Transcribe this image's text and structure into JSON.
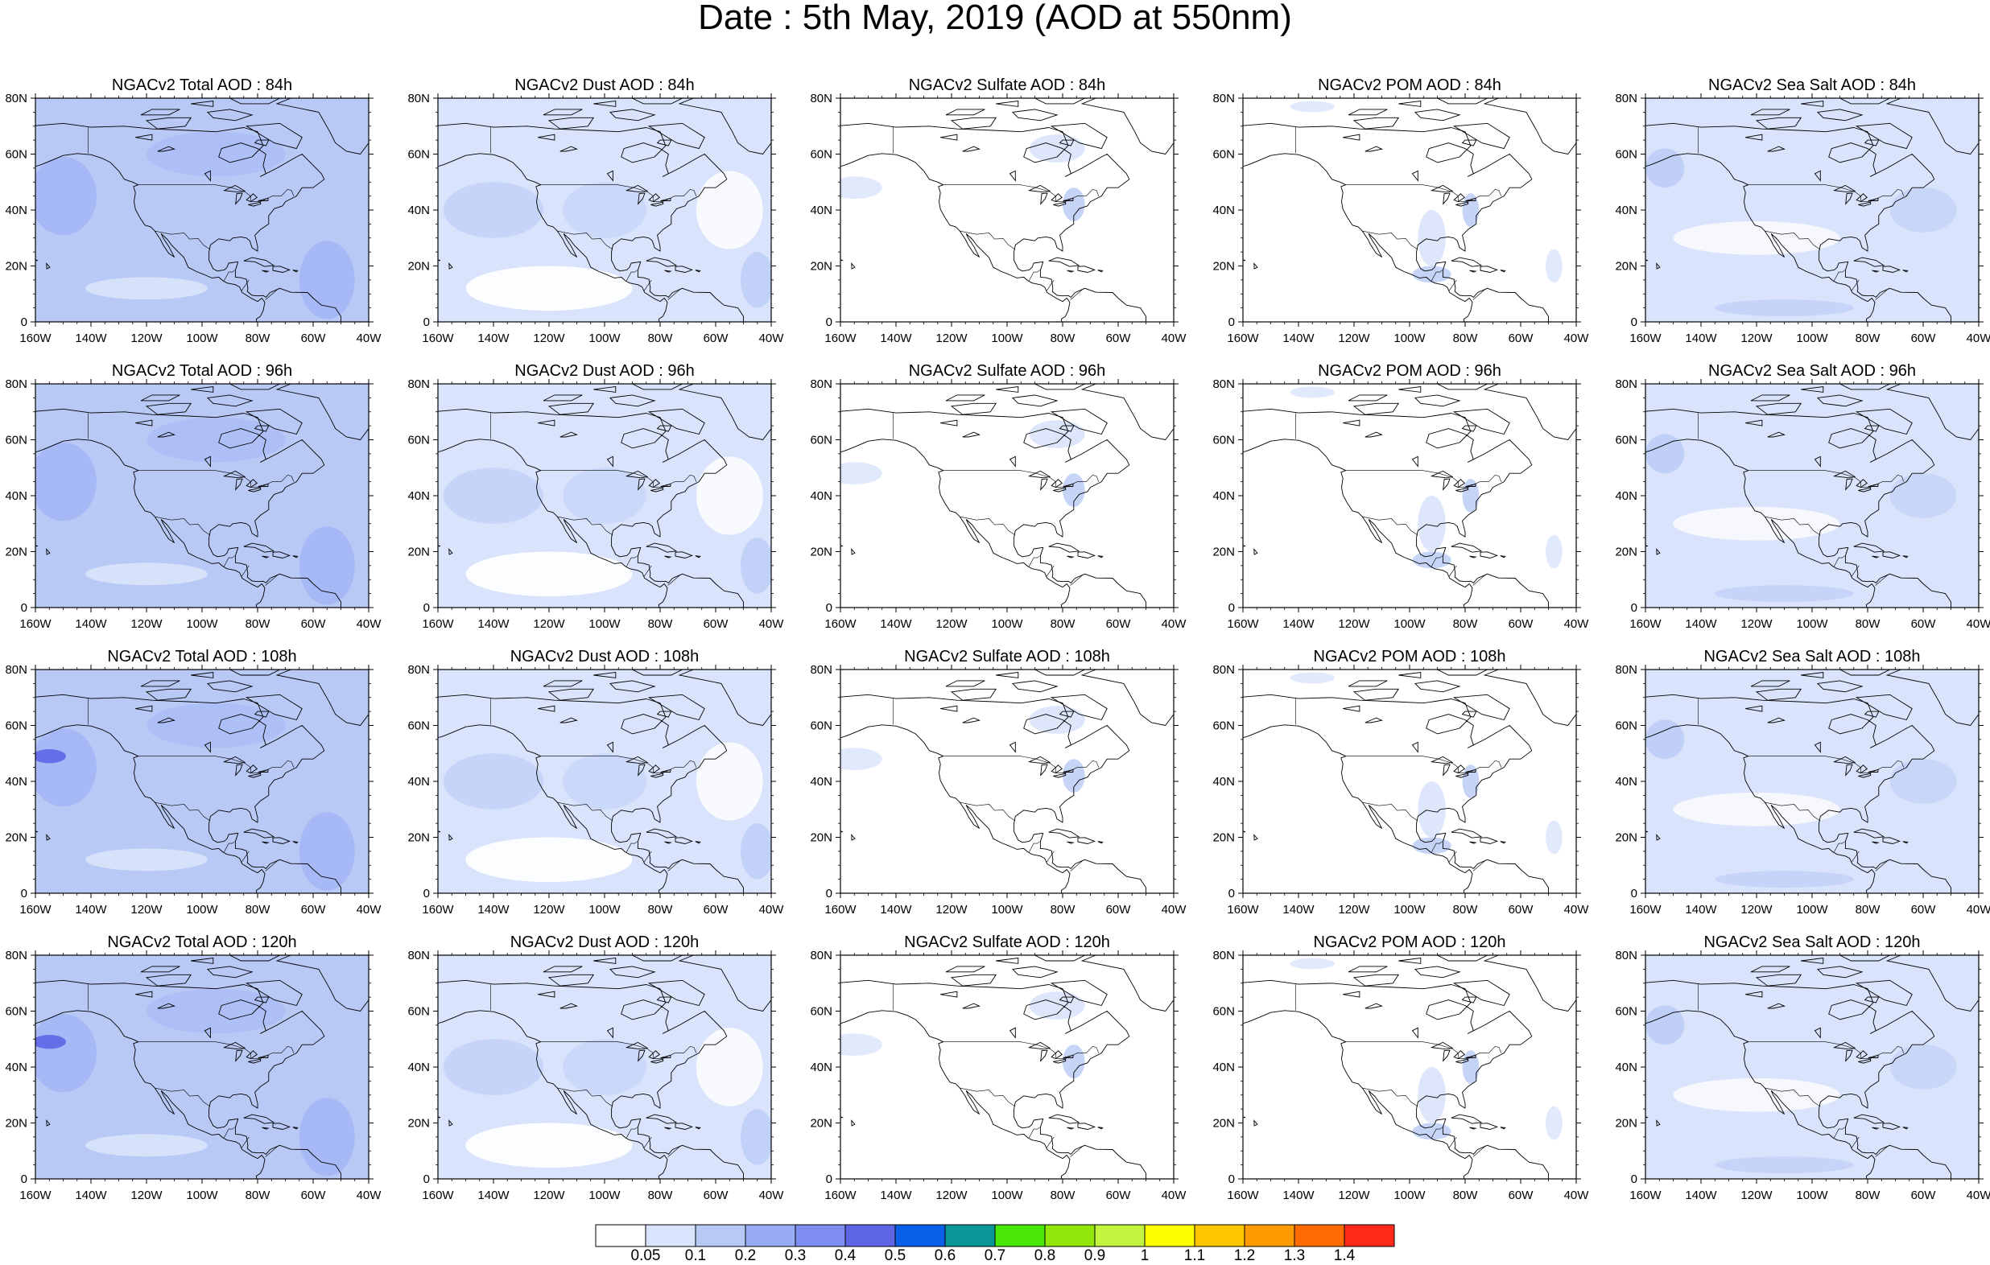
{
  "title": "Date : 5th May, 2019 (AOD at 550nm)",
  "rows": [
    {
      "lead": "84h",
      "panels": [
        {
          "title": "NGACv2 Total AOD : 84h",
          "level": 2
        },
        {
          "title": "NGACv2 Dust AOD : 84h",
          "level": 1
        },
        {
          "title": "NGACv2 Sulfate AOD : 84h",
          "level": 0
        },
        {
          "title": "NGACv2 POM AOD : 84h",
          "level": 0
        },
        {
          "title": "NGACv2 Sea Salt AOD : 84h",
          "level": 1
        }
      ]
    },
    {
      "lead": "96h",
      "panels": [
        {
          "title": "NGACv2 Total AOD : 96h",
          "level": 2
        },
        {
          "title": "NGACv2 Dust AOD : 96h",
          "level": 1
        },
        {
          "title": "NGACv2 Sulfate AOD : 96h",
          "level": 0
        },
        {
          "title": "NGACv2 POM AOD : 96h",
          "level": 0
        },
        {
          "title": "NGACv2 Sea Salt AOD : 96h",
          "level": 1
        }
      ]
    },
    {
      "lead": "108h",
      "panels": [
        {
          "title": "NGACv2 Total AOD : 108h",
          "level": 2
        },
        {
          "title": "NGACv2 Dust AOD : 108h",
          "level": 1
        },
        {
          "title": "NGACv2 Sulfate AOD : 108h",
          "level": 0
        },
        {
          "title": "NGACv2 POM AOD : 108h",
          "level": 0
        },
        {
          "title": "NGACv2 Sea Salt AOD : 108h",
          "level": 1
        }
      ]
    },
    {
      "lead": "120h",
      "panels": [
        {
          "title": "NGACv2 Total AOD : 120h",
          "level": 2
        },
        {
          "title": "NGACv2 Dust AOD : 120h",
          "level": 1
        },
        {
          "title": "NGACv2 Sulfate AOD : 120h",
          "level": 0
        },
        {
          "title": "NGACv2 POM AOD : 120h",
          "level": 0
        },
        {
          "title": "NGACv2 Sea Salt  AOD : 120h",
          "level": 1
        }
      ]
    }
  ],
  "x_ticks": [
    "160W",
    "140W",
    "120W",
    "100W",
    "80W",
    "60W",
    "40W"
  ],
  "y_ticks": [
    "80N",
    "60N",
    "40N",
    "20N",
    "0"
  ],
  "colorbar": {
    "colors": [
      "#ffffff",
      "#d9e3fb",
      "#b8c9f6",
      "#97acf5",
      "#7f8ef1",
      "#5f66e6",
      "#0a5fe8",
      "#0a9696",
      "#4ae70a",
      "#92e60a",
      "#c3f540",
      "#ffff00",
      "#ffc600",
      "#ff9a00",
      "#ff6b00",
      "#ff2a1a"
    ],
    "labels": [
      "0.05",
      "0.1",
      "0.2",
      "0.3",
      "0.4",
      "0.5",
      "0.6",
      "0.7",
      "0.8",
      "0.9",
      "1",
      "1.1",
      "1.2",
      "1.3",
      "1.4"
    ]
  }
}
